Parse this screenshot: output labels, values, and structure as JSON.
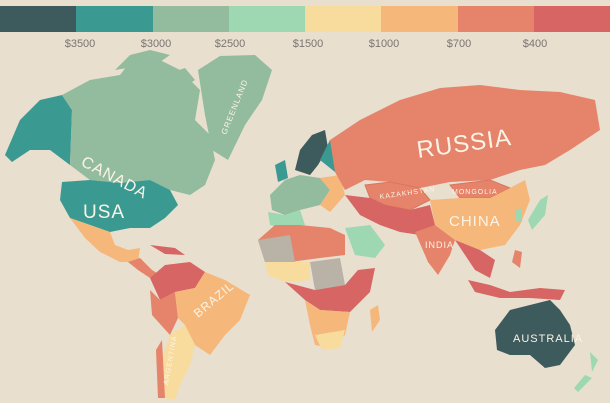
{
  "legend": {
    "colors": [
      "#3d5a5c",
      "#3a9a92",
      "#93bb9e",
      "#9dd8b2",
      "#f8dc9e",
      "#f6b87a",
      "#e5846a",
      "#d66563"
    ],
    "labels": [
      "$3500",
      "$3000",
      "$2500",
      "$1500",
      "$1000",
      "$700",
      "$400"
    ]
  },
  "map": {
    "background": "#e8dfcf",
    "no_data_color": "#b9b2a6",
    "labels": {
      "canada": "CANADA",
      "usa": "USA",
      "greenland": "GREENLAND",
      "russia": "RUSSIA",
      "kazakhstan": "KAZAKHSTAN",
      "mongolia": "MONGOLIA",
      "china": "CHINA",
      "india": "INDIA",
      "brazil": "BRAZIL",
      "argentina": "ARGENTINA",
      "australia": "AUSTRALIA"
    }
  }
}
